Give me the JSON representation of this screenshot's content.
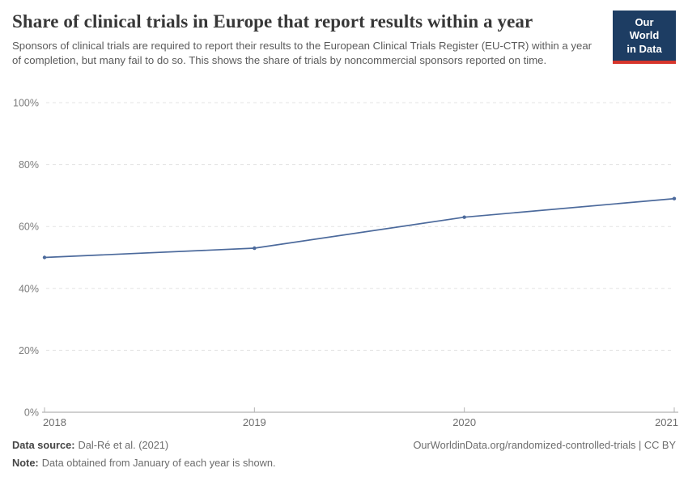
{
  "header": {
    "title": "Share of clinical trials in Europe that report results within a year",
    "subtitle": "Sponsors of clinical trials are required to report their results to the European Clinical Trials Register (EU-CTR) within a year of completion, but many fail to do so. This shows the share of trials by noncommercial sponsors reported on time.",
    "logo": {
      "line1": "Our World",
      "line2": "in Data",
      "bg_color": "#1d3d63",
      "stripe_color": "#d7352c"
    }
  },
  "chart_data": {
    "type": "line",
    "title": "Share of clinical trials in Europe that report results within a year",
    "x": [
      "2018",
      "2019",
      "2020",
      "2021"
    ],
    "series": [
      {
        "name": "Share of trials by noncommercial sponsors reported on time",
        "values": [
          50,
          53,
          63,
          69
        ]
      }
    ],
    "xlabel": "",
    "ylabel": "",
    "ylim": [
      0,
      100
    ],
    "yticks": [
      0,
      20,
      40,
      60,
      80,
      100
    ],
    "ytick_format": "{}%",
    "grid": "horizontal-dashed",
    "legend": "none",
    "line_color": "#4c6a9c",
    "marker": "dot",
    "grid_color": "#e3e3e3",
    "axis_color": "#a1a1a1",
    "tick_color": "#b3b3b3",
    "ytick_label_color": "#7c7c7c",
    "xtick_label_color": "#6e6e6e"
  },
  "footer": {
    "source_label": "Data source:",
    "source_value": "Dal-Ré et al. (2021)",
    "link": "OurWorldinData.org/randomized-controlled-trials | CC BY",
    "note_label": "Note:",
    "note_value": "Data obtained from January of each year is shown."
  }
}
